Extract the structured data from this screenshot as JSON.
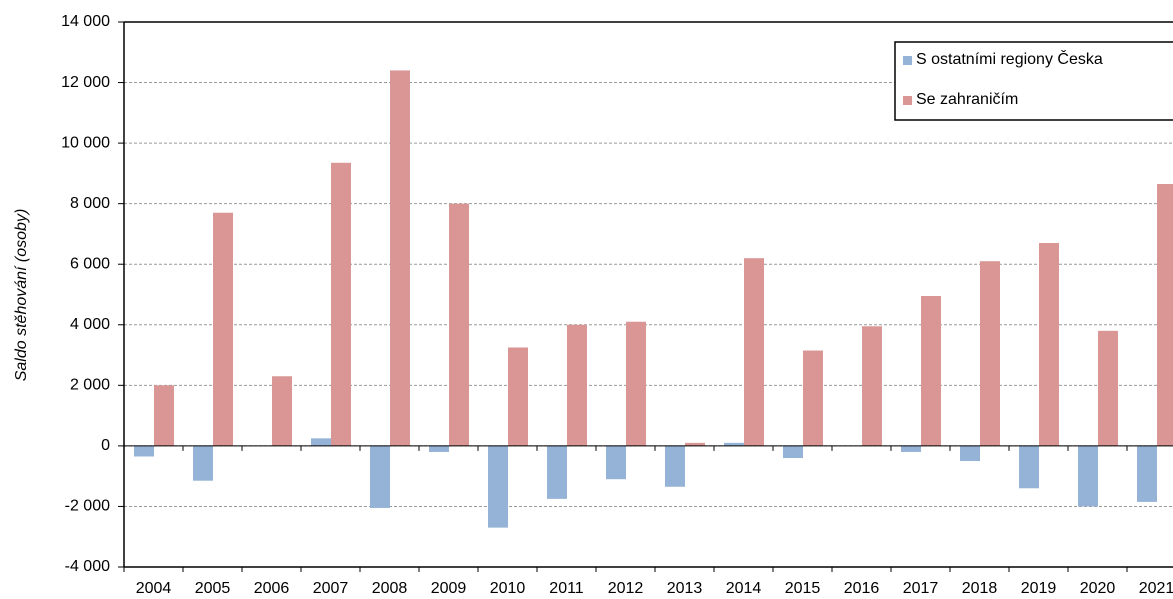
{
  "chart_data": {
    "type": "bar",
    "y_label": "Saldo stěhování (osoby)",
    "categories": [
      "2004",
      "2005",
      "2006",
      "2007",
      "2008",
      "2009",
      "2010",
      "2011",
      "2012",
      "2013",
      "2014",
      "2015",
      "2016",
      "2017",
      "2018",
      "2019",
      "2020",
      "2021"
    ],
    "series": [
      {
        "name": "S ostatními regiony Česka",
        "color": "#95b3d7",
        "values": [
          -350,
          -1150,
          0,
          250,
          -2050,
          -200,
          -2700,
          -1750,
          -1100,
          -1350,
          100,
          -400,
          0,
          -200,
          -500,
          -1400,
          -2000,
          -1850
        ]
      },
      {
        "name": "Se zahraničím",
        "color": "#d99694",
        "values": [
          2000,
          7700,
          2300,
          9350,
          12400,
          8000,
          3250,
          4000,
          4100,
          100,
          6200,
          3150,
          3950,
          4950,
          6100,
          6700,
          3800,
          8650
        ]
      }
    ],
    "ylim": [
      -4000,
      14000
    ],
    "yticks": [
      {
        "value": -4000,
        "label": "-4 000"
      },
      {
        "value": -2000,
        "label": "-2 000"
      },
      0,
      {
        "value": 2000,
        "label": "2 000"
      },
      {
        "value": 4000,
        "label": "4 000"
      },
      {
        "value": 6000,
        "label": "6 000"
      },
      {
        "value": 8000,
        "label": "8 000"
      },
      {
        "value": 10000,
        "label": "10 000"
      },
      {
        "value": 12000,
        "label": "12 000"
      },
      {
        "value": 14000,
        "label": "14 000"
      }
    ],
    "grid": true,
    "legend": "top-right"
  }
}
